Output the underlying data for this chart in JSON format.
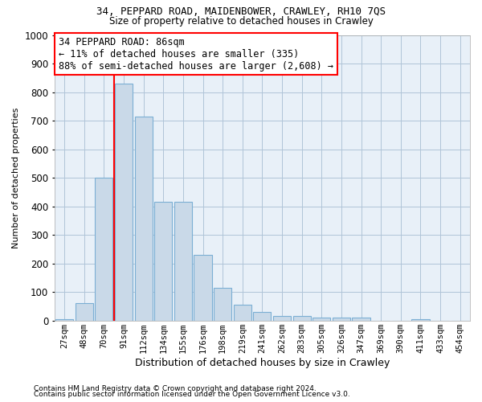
{
  "title1": "34, PEPPARD ROAD, MAIDENBOWER, CRAWLEY, RH10 7QS",
  "title2": "Size of property relative to detached houses in Crawley",
  "xlabel": "Distribution of detached houses by size in Crawley",
  "ylabel": "Number of detached properties",
  "footnote1": "Contains HM Land Registry data © Crown copyright and database right 2024.",
  "footnote2": "Contains public sector information licensed under the Open Government Licence v3.0.",
  "categories": [
    "27sqm",
    "48sqm",
    "70sqm",
    "91sqm",
    "112sqm",
    "134sqm",
    "155sqm",
    "176sqm",
    "198sqm",
    "219sqm",
    "241sqm",
    "262sqm",
    "283sqm",
    "305sqm",
    "326sqm",
    "347sqm",
    "369sqm",
    "390sqm",
    "411sqm",
    "433sqm",
    "454sqm"
  ],
  "values": [
    5,
    60,
    500,
    830,
    715,
    415,
    415,
    230,
    115,
    55,
    30,
    15,
    15,
    10,
    10,
    10,
    0,
    0,
    5,
    0,
    0
  ],
  "bar_color": "#c9d9e8",
  "bar_edge_color": "#7bafd4",
  "grid_color": "#b0c4d8",
  "bg_color": "#e8f0f8",
  "vline_color": "red",
  "vline_position": 2.5,
  "annotation_text": "34 PEPPARD ROAD: 86sqm\n← 11% of detached houses are smaller (335)\n88% of semi-detached houses are larger (2,608) →",
  "annotation_box_color": "white",
  "annotation_box_edge": "red",
  "ylim": [
    0,
    1000
  ],
  "yticks": [
    0,
    100,
    200,
    300,
    400,
    500,
    600,
    700,
    800,
    900,
    1000
  ]
}
